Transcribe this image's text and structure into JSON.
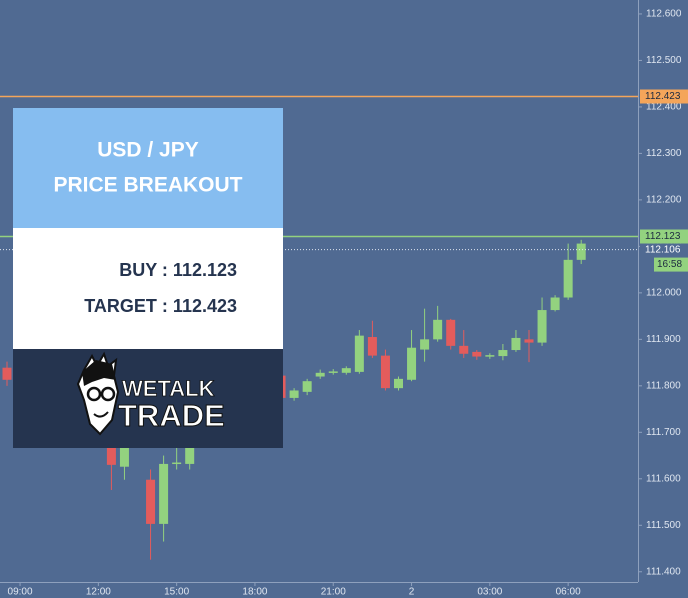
{
  "chart_data": {
    "type": "candlestick",
    "categories": [
      null,
      "09:00",
      null,
      null,
      null,
      null,
      null,
      "12:00",
      null,
      null,
      null,
      null,
      null,
      "15:00",
      null,
      null,
      null,
      null,
      null,
      "18:00",
      null,
      null,
      null,
      null,
      null,
      "21:00",
      null,
      null,
      null,
      null,
      null,
      "2",
      null,
      null,
      null,
      null,
      null,
      "03:00",
      null,
      null,
      null,
      null,
      null,
      "06:00",
      null
    ],
    "open": [
      111.839,
      null,
      null,
      null,
      null,
      null,
      null,
      null,
      111.68,
      111.626,
      null,
      111.598,
      111.503,
      111.632,
      111.632,
      null,
      null,
      null,
      null,
      null,
      null,
      111.822,
      111.774,
      111.787,
      111.82,
      111.83,
      111.828,
      111.83,
      111.905,
      111.865,
      111.795,
      111.813,
      111.878,
      111.9,
      111.942,
      111.886,
      111.873,
      111.864,
      111.864,
      111.877,
      111.9,
      111.893,
      111.963,
      111.99,
      112.071
    ],
    "high": [
      111.852,
      null,
      null,
      null,
      null,
      null,
      null,
      null,
      111.69,
      111.69,
      null,
      111.62,
      111.65,
      111.67,
      111.69,
      null,
      null,
      null,
      null,
      null,
      null,
      111.83,
      111.795,
      111.815,
      111.835,
      111.836,
      111.842,
      111.92,
      111.94,
      111.878,
      111.82,
      111.92,
      111.966,
      111.972,
      111.944,
      111.92,
      111.877,
      111.87,
      111.89,
      111.92,
      111.92,
      111.99,
      111.995,
      112.106,
      112.114
    ],
    "low": [
      111.8,
      null,
      null,
      null,
      null,
      null,
      null,
      null,
      111.576,
      111.598,
      null,
      111.426,
      111.465,
      111.62,
      111.62,
      null,
      null,
      null,
      null,
      null,
      null,
      111.77,
      111.768,
      111.78,
      111.815,
      111.824,
      111.824,
      111.826,
      111.86,
      111.79,
      111.79,
      111.81,
      111.852,
      111.895,
      111.878,
      111.86,
      111.856,
      111.858,
      111.855,
      111.873,
      111.851,
      111.886,
      111.96,
      111.985,
      112.062
    ],
    "close": [
      111.813,
      null,
      null,
      null,
      null,
      null,
      null,
      null,
      111.63,
      111.68,
      null,
      111.503,
      111.632,
      111.635,
      111.67,
      null,
      null,
      null,
      null,
      null,
      null,
      111.774,
      111.79,
      111.81,
      111.828,
      111.831,
      111.838,
      111.908,
      111.865,
      111.795,
      111.815,
      111.882,
      111.9,
      111.942,
      111.886,
      111.869,
      111.863,
      111.866,
      111.877,
      111.903,
      111.893,
      111.963,
      111.99,
      112.071,
      112.106
    ],
    "up_color": "#93d27f",
    "down_color": "#e35c5c",
    "ylim": [
      111.378,
      112.63
    ],
    "yticks": [
      {
        "value": 111.4,
        "label": "111.400"
      },
      {
        "value": 111.5,
        "label": "111.500"
      },
      {
        "value": 111.6,
        "label": "111.600"
      },
      {
        "value": 111.7,
        "label": "111.700"
      },
      {
        "value": 111.8,
        "label": "111.800"
      },
      {
        "value": 111.9,
        "label": "111.900"
      },
      {
        "value": 112.0,
        "label": "112.000"
      },
      {
        "value": 112.1,
        "label": "112.100"
      },
      {
        "value": 112.2,
        "label": "112.200"
      },
      {
        "value": 112.3,
        "label": "112.300"
      },
      {
        "value": 112.4,
        "label": "112.400"
      },
      {
        "value": 112.5,
        "label": "112.500"
      },
      {
        "value": 112.6,
        "label": "112.600"
      }
    ],
    "levels": [
      {
        "value": 112.423,
        "label": "112.423",
        "color": "#f4a55a"
      },
      {
        "value": 112.123,
        "label": "112.123",
        "color": "#93d27f"
      }
    ],
    "last_price": {
      "value": 112.106,
      "label": "112.106"
    },
    "countdown": "16:58"
  },
  "panel": {
    "title": "USD / JPY",
    "subtitle": "PRICE BREAKOUT",
    "buy": "BUY : 112.123",
    "target": "TARGET : 112.423",
    "logo_top": "WETALK",
    "logo_bottom": "TRADE"
  }
}
